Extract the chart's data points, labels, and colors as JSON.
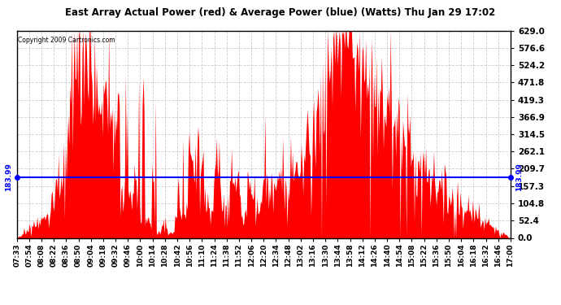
{
  "title": "East Array Actual Power (red) & Average Power (blue) (Watts) Thu Jan 29 17:02",
  "copyright": "Copyright 2009 Cartronics.com",
  "avg_power": 183.99,
  "y_max": 629.0,
  "y_min": 0.0,
  "y_ticks": [
    0.0,
    52.4,
    104.8,
    157.3,
    209.7,
    262.1,
    314.5,
    366.9,
    419.3,
    471.8,
    524.2,
    576.6,
    629.0
  ],
  "fill_color": "red",
  "avg_line_color": "blue",
  "background_color": "white",
  "grid_color": "#cccccc",
  "avg_label": "183.99",
  "x_tick_labels": [
    "07:33",
    "07:54",
    "08:08",
    "08:22",
    "08:36",
    "08:50",
    "09:04",
    "09:18",
    "09:32",
    "09:46",
    "10:00",
    "10:14",
    "10:28",
    "10:42",
    "10:56",
    "11:10",
    "11:24",
    "11:38",
    "11:52",
    "12:06",
    "12:20",
    "12:34",
    "12:48",
    "13:02",
    "13:16",
    "13:30",
    "13:44",
    "13:58",
    "14:12",
    "14:26",
    "14:40",
    "14:54",
    "15:08",
    "15:22",
    "15:36",
    "15:50",
    "16:04",
    "16:18",
    "16:32",
    "16:46",
    "17:00"
  ]
}
